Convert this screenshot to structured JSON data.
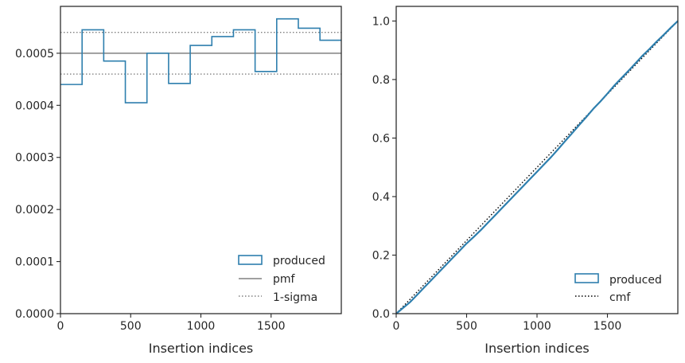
{
  "chart_data": [
    {
      "type": "step",
      "xlabel": "Insertion indices",
      "ylabel": "",
      "xlim": [
        0,
        2000
      ],
      "ylim": [
        0,
        0.00059
      ],
      "xticks": [
        0,
        500,
        1000,
        1500
      ],
      "yticks": [
        0.0,
        0.0001,
        0.0002,
        0.0003,
        0.0004,
        0.0005
      ],
      "ytick_labels": [
        "0.0000",
        "0.0001",
        "0.0002",
        "0.0003",
        "0.0004",
        "0.0005"
      ],
      "xtick_labels": [
        "0",
        "500",
        "1000",
        "1500"
      ],
      "series": [
        {
          "name": "produced",
          "color": "#2e7fae",
          "bin_edges": [
            0,
            154,
            308,
            462,
            616,
            770,
            924,
            1078,
            1232,
            1386,
            1540,
            1694,
            1848,
            2000
          ],
          "values": [
            0.00044,
            0.000545,
            0.000485,
            0.000405,
            0.0005,
            0.000442,
            0.000515,
            0.000532,
            0.000545,
            0.000465,
            0.000566,
            0.000548,
            0.000525
          ]
        }
      ],
      "reference_lines": [
        {
          "name": "pmf",
          "value": 0.0005,
          "style": "solid",
          "color": "#808080"
        },
        {
          "name": "1-sigma",
          "values": [
            0.00054,
            0.00046
          ],
          "style": "dotted",
          "color": "#808080"
        }
      ],
      "legend": {
        "placement": "lower-right",
        "entries": [
          "produced",
          "pmf",
          "1-sigma"
        ]
      }
    },
    {
      "type": "line",
      "xlabel": "Insertion indices",
      "ylabel": "",
      "xlim": [
        0,
        2000
      ],
      "ylim": [
        0,
        1.05
      ],
      "xticks": [
        0,
        500,
        1000,
        1500
      ],
      "yticks": [
        0.0,
        0.2,
        0.4,
        0.6,
        0.8,
        1.0
      ],
      "ytick_labels": [
        "0.0",
        "0.2",
        "0.4",
        "0.6",
        "0.8",
        "1.0"
      ],
      "xtick_labels": [
        "0",
        "500",
        "1000",
        "1500"
      ],
      "series": [
        {
          "name": "produced",
          "color": "#2e7fae",
          "x": [
            0,
            50,
            100,
            150,
            200,
            250,
            300,
            350,
            400,
            450,
            500,
            550,
            600,
            650,
            700,
            750,
            800,
            850,
            900,
            950,
            1000,
            1050,
            1100,
            1150,
            1200,
            1250,
            1300,
            1350,
            1400,
            1450,
            1500,
            1550,
            1600,
            1650,
            1700,
            1750,
            1800,
            1850,
            1900,
            1950,
            2000
          ],
          "y": [
            0,
            0.02,
            0.04,
            0.065,
            0.09,
            0.115,
            0.14,
            0.165,
            0.19,
            0.215,
            0.24,
            0.262,
            0.285,
            0.31,
            0.335,
            0.36,
            0.385,
            0.41,
            0.435,
            0.46,
            0.485,
            0.51,
            0.535,
            0.562,
            0.59,
            0.617,
            0.645,
            0.672,
            0.7,
            0.725,
            0.752,
            0.78,
            0.805,
            0.83,
            0.856,
            0.882,
            0.905,
            0.93,
            0.953,
            0.977,
            1.0
          ]
        },
        {
          "name": "cmf",
          "color": "#000000",
          "style": "dotted",
          "x": [
            0,
            2000
          ],
          "y": [
            0,
            1.0
          ]
        }
      ],
      "legend": {
        "placement": "lower-right",
        "entries": [
          "produced",
          "cmf"
        ]
      }
    }
  ]
}
